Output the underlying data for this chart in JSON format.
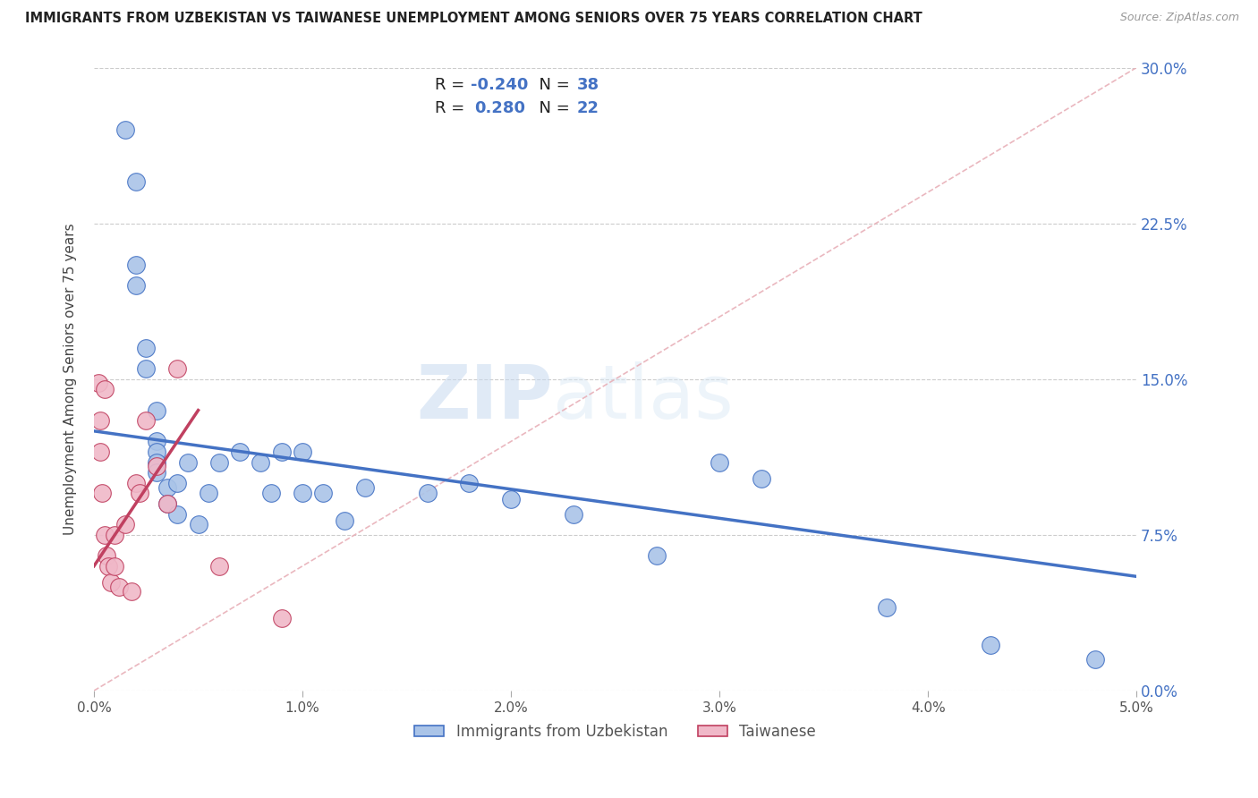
{
  "title": "IMMIGRANTS FROM UZBEKISTAN VS TAIWANESE UNEMPLOYMENT AMONG SENIORS OVER 75 YEARS CORRELATION CHART",
  "source": "Source: ZipAtlas.com",
  "ylabel": "Unemployment Among Seniors over 75 years",
  "legend_label1": "Immigrants from Uzbekistan",
  "legend_label2": "Taiwanese",
  "R1": -0.24,
  "N1": 38,
  "R2": 0.28,
  "N2": 22,
  "xlim": [
    0.0,
    0.05
  ],
  "ylim": [
    0.0,
    0.3
  ],
  "xticks": [
    0.0,
    0.01,
    0.02,
    0.03,
    0.04,
    0.05
  ],
  "yticks": [
    0.0,
    0.075,
    0.15,
    0.225,
    0.3
  ],
  "color_blue": "#aac4e8",
  "color_pink": "#f0b8c8",
  "line_blue": "#4472c4",
  "line_pink": "#c04060",
  "diag_color": "#e8b0b8",
  "blue_scatter_x": [
    0.0015,
    0.002,
    0.002,
    0.002,
    0.0025,
    0.0025,
    0.003,
    0.003,
    0.003,
    0.003,
    0.003,
    0.0035,
    0.0035,
    0.004,
    0.004,
    0.0045,
    0.005,
    0.0055,
    0.006,
    0.007,
    0.008,
    0.0085,
    0.009,
    0.01,
    0.01,
    0.011,
    0.012,
    0.013,
    0.016,
    0.018,
    0.02,
    0.023,
    0.027,
    0.03,
    0.032,
    0.038,
    0.043,
    0.048
  ],
  "blue_scatter_y": [
    0.27,
    0.245,
    0.205,
    0.195,
    0.165,
    0.155,
    0.135,
    0.12,
    0.115,
    0.11,
    0.105,
    0.098,
    0.09,
    0.1,
    0.085,
    0.11,
    0.08,
    0.095,
    0.11,
    0.115,
    0.11,
    0.095,
    0.115,
    0.095,
    0.115,
    0.095,
    0.082,
    0.098,
    0.095,
    0.1,
    0.092,
    0.085,
    0.065,
    0.11,
    0.102,
    0.04,
    0.022,
    0.015
  ],
  "pink_scatter_x": [
    0.0002,
    0.0003,
    0.0003,
    0.0004,
    0.0005,
    0.0005,
    0.0006,
    0.0007,
    0.0008,
    0.001,
    0.001,
    0.0012,
    0.0015,
    0.0018,
    0.002,
    0.0022,
    0.0025,
    0.003,
    0.0035,
    0.004,
    0.006,
    0.009
  ],
  "pink_scatter_y": [
    0.148,
    0.13,
    0.115,
    0.095,
    0.145,
    0.075,
    0.065,
    0.06,
    0.052,
    0.075,
    0.06,
    0.05,
    0.08,
    0.048,
    0.1,
    0.095,
    0.13,
    0.108,
    0.09,
    0.155,
    0.06,
    0.035
  ],
  "blue_line_x0": 0.0,
  "blue_line_y0": 0.125,
  "blue_line_x1": 0.05,
  "blue_line_y1": 0.055,
  "pink_line_x0": 0.0,
  "pink_line_y0": 0.06,
  "pink_line_x1": 0.005,
  "pink_line_y1": 0.135,
  "watermark_zip": "ZIP",
  "watermark_atlas": "atlas",
  "background_color": "#ffffff"
}
